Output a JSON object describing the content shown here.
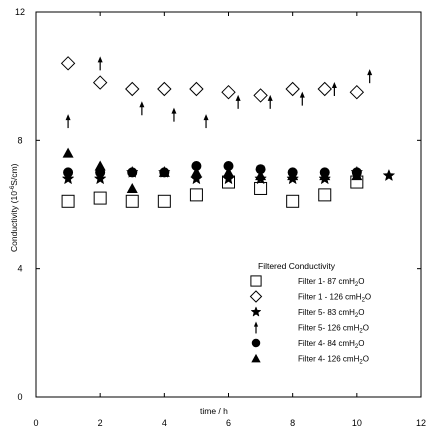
{
  "chart_data": {
    "type": "scatter",
    "xlabel": "time / h",
    "ylabel_parts": [
      "Conductivity (10",
      "-6",
      "S/cm)"
    ],
    "xlim": [
      0,
      12
    ],
    "ylim": [
      0,
      12
    ],
    "x_ticks": [
      0,
      2,
      4,
      6,
      8,
      10,
      12
    ],
    "y_ticks": [
      0,
      4,
      8,
      12
    ],
    "grid": false,
    "legend_title": "Filtered Conductivity",
    "legend_placement": "lower-right",
    "series": [
      {
        "name": "Filter 1- 87  cmH2O",
        "marker": "square-open",
        "x": [
          1,
          2,
          3,
          4,
          5,
          6,
          7,
          8,
          9,
          10
        ],
        "y": [
          6.1,
          6.2,
          6.1,
          6.1,
          6.3,
          6.7,
          6.5,
          6.1,
          6.3,
          6.7
        ]
      },
      {
        "name": "Filter 1 - 126 cmH2O",
        "marker": "diamond-open",
        "x": [
          1,
          2,
          3,
          4,
          5,
          6,
          7,
          8,
          9,
          10
        ],
        "y": [
          10.4,
          9.8,
          9.6,
          9.6,
          9.6,
          9.5,
          9.4,
          9.6,
          9.6,
          9.5
        ]
      },
      {
        "name": "Filter 5- 83  cmH2O",
        "marker": "star",
        "x": [
          1,
          2,
          3,
          4,
          5,
          6,
          7,
          8,
          9,
          10,
          11
        ],
        "y": [
          6.8,
          6.8,
          7.0,
          7.0,
          6.8,
          6.8,
          6.8,
          6.8,
          6.8,
          7.0,
          6.9
        ]
      },
      {
        "name": "Filter 5- 126 cmH2O",
        "marker": "arrow-up",
        "x": [
          1,
          2,
          3.3,
          4.3,
          5.3,
          6.3,
          7.3,
          8.3,
          9.3,
          10.4
        ],
        "y": [
          8.6,
          10.4,
          9.0,
          8.8,
          8.6,
          9.2,
          9.2,
          9.3,
          9.6,
          10.0
        ]
      },
      {
        "name": "Filter 4- 84  cmH2O",
        "marker": "circle-filled",
        "x": [
          1,
          2,
          3,
          4,
          5,
          6,
          7,
          8,
          9,
          10
        ],
        "y": [
          7.0,
          7.0,
          7.0,
          7.0,
          7.2,
          7.2,
          7.1,
          7.0,
          7.0,
          7.0
        ]
      },
      {
        "name": "Filter 4- 126 cmH2O",
        "marker": "triangle-filled",
        "x": [
          1,
          2,
          3,
          4,
          5,
          6,
          7,
          8,
          9,
          10
        ],
        "y": [
          7.6,
          7.2,
          6.5,
          7.0,
          7.0,
          7.0,
          6.9,
          6.9,
          6.9,
          6.9
        ]
      }
    ]
  }
}
